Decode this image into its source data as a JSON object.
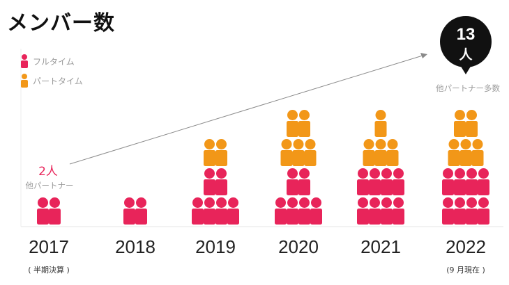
{
  "title": "メンバー数",
  "legend": [
    {
      "label": "フルタイム",
      "color": "#e8245a"
    },
    {
      "label": "パートタイム",
      "color": "#f29718"
    }
  ],
  "chart_data": {
    "type": "bar",
    "title": "メンバー数",
    "categories": [
      "2017",
      "2018",
      "2019",
      "2020",
      "2021",
      "2022"
    ],
    "category_notes": [
      "( 半期決算 )",
      "",
      "",
      "",
      "",
      "(9 月現在 )"
    ],
    "series": [
      {
        "name": "フルタイム",
        "color": "#e8245a",
        "values": [
          2,
          2,
          6,
          6,
          8,
          8
        ]
      },
      {
        "name": "パートタイム",
        "color": "#f29718",
        "values": [
          0,
          0,
          2,
          5,
          4,
          5
        ]
      }
    ],
    "annotations": {
      "start_count": "2人",
      "start_note": "他パートナー",
      "end_count_number": "13",
      "end_count_unit": "人",
      "end_note": "他パートナー多数"
    },
    "grid": false,
    "legend_position": "top-left"
  }
}
